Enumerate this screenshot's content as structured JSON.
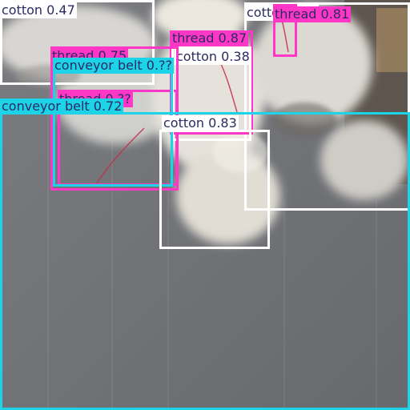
{
  "detections": [
    {
      "label": "cotton 0.47",
      "category": "cotton",
      "color": "#ffffff",
      "text_color": "#2b2b62"
    },
    {
      "label": "cotton 0.38",
      "category": "cotton",
      "color": "#ffffff",
      "text_color": "#2b2b62"
    },
    {
      "label": "cotton 0.83",
      "category": "cotton",
      "color": "#ffffff",
      "text_color": "#2b2b62"
    },
    {
      "label": "cotton 0.??",
      "category": "cotton",
      "color": "#ffffff",
      "text_color": "#2b2b62"
    },
    {
      "label": "thread 0.81",
      "category": "thread",
      "color": "#ff37c7",
      "text_color": "#2b2b62"
    },
    {
      "label": "thread 0.87",
      "category": "thread",
      "color": "#ff37c7",
      "text_color": "#2b2b62"
    },
    {
      "label": "thread 0.75",
      "category": "thread",
      "color": "#ff37c7",
      "text_color": "#2b2b62"
    },
    {
      "label": "thread 0.??",
      "category": "thread",
      "color": "#ff37c7",
      "text_color": "#2b2b62"
    },
    {
      "label": "conveyor belt 0.??",
      "category": "conveyor belt",
      "color": "#1cd3e8",
      "text_color": "#2b2b62"
    },
    {
      "label": "conveyor belt 0.72",
      "category": "conveyor belt",
      "color": "#1cd3e8",
      "text_color": "#2b2b62"
    }
  ]
}
